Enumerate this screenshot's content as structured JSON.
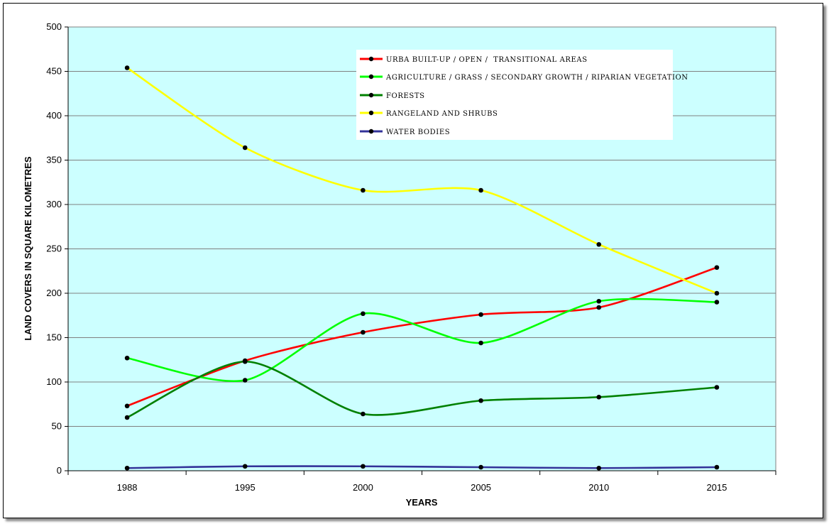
{
  "chart_data": {
    "type": "line",
    "xlabel": "YEARS",
    "ylabel": "LAND COVERS IN SQUARE KILOMETRES",
    "ylim": [
      0,
      500
    ],
    "y_ticks": [
      "0",
      "50",
      "100",
      "150",
      "200",
      "250",
      "300",
      "350",
      "400",
      "450",
      "500"
    ],
    "categories": [
      "1988",
      "1995",
      "2000",
      "2005",
      "2010",
      "2015"
    ],
    "grid": true,
    "legend_position": "top-right",
    "plot_background": "#ccffff",
    "series": [
      {
        "name": "URBA BUILT-UP / OPEN /  TRANSITIONAL AREAS",
        "color": "#ff0000",
        "values": [
          73,
          124,
          156,
          176,
          184,
          229
        ]
      },
      {
        "name": "AGRICULTURE / GRASS / SECONDARY GROWTH / RIPARIAN VEGETATION",
        "color": "#00ff00",
        "values": [
          127,
          102,
          177,
          144,
          191,
          190
        ]
      },
      {
        "name": "FORESTS",
        "color": "#008000",
        "values": [
          60,
          123,
          64,
          79,
          83,
          94
        ]
      },
      {
        "name": "RANGELAND AND SHRUBS",
        "color": "#ffff00",
        "values": [
          454,
          364,
          316,
          316,
          255,
          200
        ]
      },
      {
        "name": "WATER BODIES",
        "color": "#333399",
        "values": [
          3,
          5,
          5,
          4,
          3,
          4
        ]
      }
    ]
  }
}
